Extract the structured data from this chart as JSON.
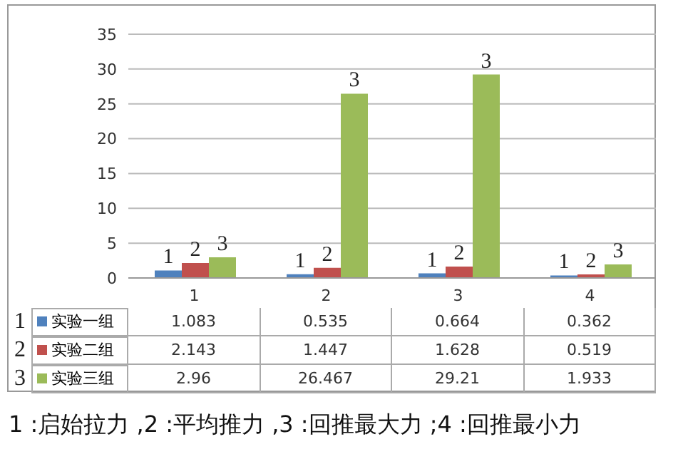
{
  "chart_data": {
    "type": "bar",
    "categories": [
      "1",
      "2",
      "3",
      "4"
    ],
    "series": [
      {
        "name": "实验一组",
        "color": "#4f81bd",
        "values": [
          1.083,
          0.535,
          0.664,
          0.362
        ],
        "value_labels": [
          "1.083",
          "0.535",
          "0.664",
          "0.362"
        ]
      },
      {
        "name": "实验二组",
        "color": "#c0504d",
        "values": [
          2.143,
          1.447,
          1.628,
          0.519
        ],
        "value_labels": [
          "2.143",
          "1.447",
          "1.628",
          "0.519"
        ]
      },
      {
        "name": "实验三组",
        "color": "#9bbb59",
        "values": [
          2.96,
          26.467,
          29.21,
          1.933
        ],
        "value_labels": [
          "2.96",
          "26.467",
          "29.21",
          "1.933"
        ]
      }
    ],
    "ylim": [
      0,
      35
    ],
    "yticks": [
      0,
      5,
      10,
      15,
      20,
      25,
      30,
      35
    ],
    "grid": "y",
    "legend": "bottom",
    "annotations": [
      "1",
      "2",
      "3",
      "1",
      "2",
      "3",
      "1",
      "2",
      "3",
      "1",
      "2",
      "3",
      "1",
      "2",
      "3",
      "1 :启始拉力 ,2 :平均推力 ,3 :回推最大力 ;4 :回推最小力"
    ]
  }
}
